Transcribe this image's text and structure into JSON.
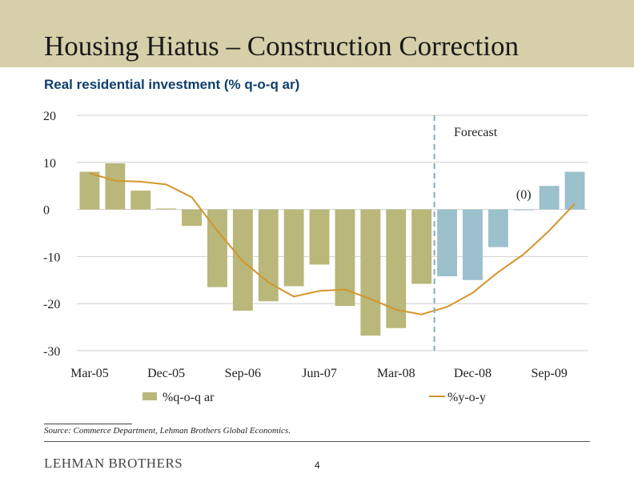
{
  "slide": {
    "title": "Housing Hiatus – Construction Correction",
    "subtitle": "Real residential investment (% q-o-q ar)",
    "source": "Source: Commerce Department, Lehman Brothers Global Economics.",
    "logo": "LEHMAN BROTHERS",
    "page_number": "4"
  },
  "colors": {
    "header_band": "#d6cfa9",
    "subtitle": "#0f3f6b",
    "bar_actual": "#b9b77a",
    "bar_forecast": "#9cc0cc",
    "line": "#d4952b",
    "forecast_divider": "#8aa9bd"
  },
  "chart_data": {
    "type": "bar",
    "ylim": [
      -30,
      20
    ],
    "yticks": [
      "20",
      "10",
      "0",
      "-10",
      "-20",
      "-30"
    ],
    "x_tick_labels": [
      "Mar-05",
      "Dec-05",
      "Sep-06",
      "Jun-07",
      "Mar-08",
      "Dec-08",
      "Sep-09"
    ],
    "grid": true,
    "forecast_label": "Forecast",
    "forecast_begins_after_index": 13,
    "annotation": "(0)",
    "legend_position": "bottom",
    "series": [
      {
        "name": "%q-o-q ar",
        "kind": "bar",
        "values": [
          8,
          9.8,
          4,
          0.2,
          -3.5,
          -16.5,
          -21.5,
          -19.5,
          -16.3,
          -11.7,
          -20.5,
          -26.8,
          -25.2,
          -15.8,
          -14.2,
          -15,
          -8,
          0,
          5,
          8
        ]
      },
      {
        "name": "%y-o-y",
        "kind": "line",
        "values": [
          7.7,
          6.1,
          5.9,
          5.3,
          2.6,
          -4.5,
          -11,
          -15.5,
          -18.5,
          -17.3,
          -17,
          -19,
          -21.3,
          -22.3,
          -20.7,
          -17.7,
          -13.3,
          -9.5,
          -4.5,
          1.2
        ]
      }
    ]
  }
}
